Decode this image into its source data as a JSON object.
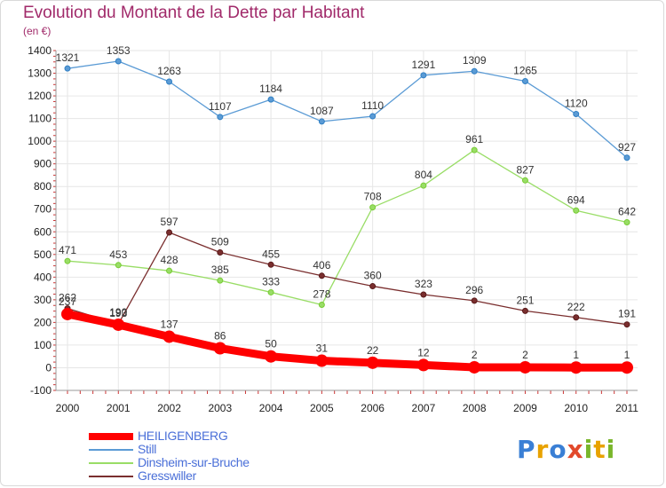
{
  "title": "Evolution du Montant de la Dette par Habitant",
  "subtitle": "(en €)",
  "logo": {
    "letters": [
      "P",
      "r",
      "o",
      "x",
      "i",
      "t",
      "i"
    ],
    "colors": [
      "#3a7fd5",
      "#e8a200",
      "#3a7fd5",
      "#e2492b",
      "#79b62a",
      "#e8a200",
      "#79b62a"
    ]
  },
  "chart_data": {
    "type": "line",
    "x": [
      "2000",
      "2001",
      "2002",
      "2003",
      "2004",
      "2005",
      "2006",
      "2007",
      "2008",
      "2009",
      "2010",
      "2011"
    ],
    "ylim": [
      -100,
      1400
    ],
    "yticks": [
      "-100",
      "0",
      "100",
      "200",
      "300",
      "400",
      "500",
      "600",
      "700",
      "800",
      "900",
      "1000",
      "1100",
      "1200",
      "1300",
      "1400"
    ],
    "grid": true,
    "legend_position": "bottom-left",
    "series": [
      {
        "name": "HEILIGENBERG",
        "color": "#ff0000",
        "thick": true,
        "values": [
          237,
          190,
          137,
          86,
          50,
          31,
          22,
          12,
          2,
          2,
          1,
          1
        ],
        "labels": [
          "237",
          "190",
          "137",
          "86",
          "50",
          "31",
          "22",
          "12",
          "2",
          "2",
          "1",
          "1"
        ]
      },
      {
        "name": "Still",
        "color": "#5b9bd5",
        "marker": "#2f7fc4",
        "values": [
          1321,
          1353,
          1263,
          1107,
          1184,
          1087,
          1110,
          1291,
          1309,
          1265,
          1120,
          927
        ],
        "labels": [
          "1321",
          "1353",
          "1263",
          "1107",
          "1184",
          "1087",
          "1110",
          "1291",
          "1309",
          "1265",
          "1120",
          "927"
        ]
      },
      {
        "name": "Dinsheim-sur-Bruche",
        "color": "#99dd66",
        "marker": "#77cc33",
        "values": [
          471,
          453,
          428,
          385,
          333,
          278,
          708,
          804,
          961,
          827,
          694,
          642
        ],
        "labels": [
          "471",
          "453",
          "428",
          "385",
          "333",
          "278",
          "708",
          "804",
          "961",
          "827",
          "694",
          "642"
        ]
      },
      {
        "name": "Gresswiller",
        "color": "#7a2e2e",
        "marker": "#5a1a1a",
        "values": [
          262,
          193,
          597,
          509,
          455,
          406,
          360,
          323,
          296,
          251,
          222,
          191
        ],
        "labels": [
          "262",
          "193",
          "597",
          "509",
          "455",
          "406",
          "360",
          "323",
          "296",
          "251",
          "222",
          "191"
        ]
      }
    ]
  }
}
